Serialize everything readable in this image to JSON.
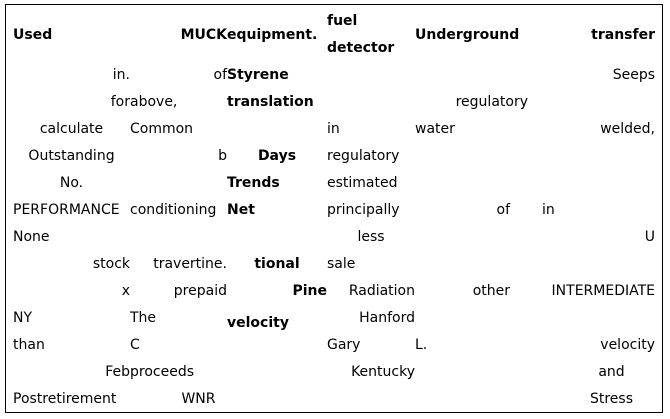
{
  "table": {
    "headers": [
      "Used",
      "MUCK",
      "equipment.",
      "fuel\ndetector",
      "Underground",
      "transfer"
    ],
    "rows": [
      [
        "in.",
        "of",
        "Styrene",
        "",
        "",
        "Seeps"
      ],
      [
        "for",
        "above,",
        "translation",
        "",
        "regulatory",
        ""
      ],
      [
        "calculate",
        "Common",
        "",
        "in",
        "water",
        "welded,"
      ],
      [
        "Outstanding",
        "b",
        "Days",
        "regulatory",
        "",
        ""
      ],
      [
        "No.",
        "",
        "Trends",
        "estimated",
        "",
        ""
      ],
      [
        "PERFORMANCE",
        "conditioning",
        "Net",
        "principally",
        "of",
        "in"
      ],
      [
        "None",
        "",
        "",
        "less",
        "",
        "U"
      ],
      [
        "stock",
        "travertine.",
        "tional",
        "sale",
        "",
        ""
      ],
      [
        "x",
        "prepaid",
        "Pine",
        "Radiation",
        "other",
        "INTERMEDIATE"
      ],
      [
        "NY",
        "The",
        "velocity",
        "Hanford",
        "",
        ""
      ],
      [
        "than",
        "C",
        "",
        "Gary",
        "L.",
        "velocity"
      ],
      [
        "Feb",
        "proceeds",
        "",
        "Kentucky",
        "",
        "and"
      ],
      [
        "Postretirement",
        "WNR",
        "",
        "",
        "",
        "Stress"
      ]
    ]
  }
}
